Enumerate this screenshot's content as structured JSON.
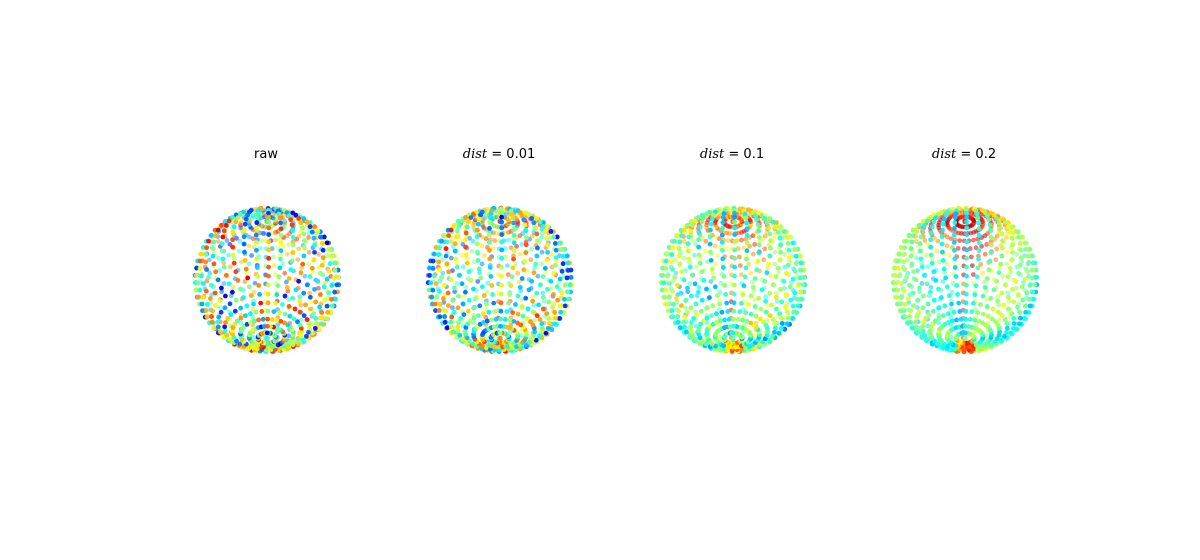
{
  "chart_data": {
    "type": "scatter",
    "subtype": "3d-scatter-sphere",
    "colormap": "jet",
    "axes_visible": false,
    "grid": false,
    "legend": "none",
    "panels": [
      {
        "title": "raw",
        "title_math": false,
        "dist": null
      },
      {
        "title": "dist = 0.01",
        "title_math": true,
        "var": "dist",
        "value": "0.01"
      },
      {
        "title": "dist = 0.1",
        "title_math": true,
        "var": "dist",
        "value": "0.1"
      },
      {
        "title": "dist = 0.2",
        "title_math": true,
        "var": "dist",
        "value": "0.2"
      }
    ]
  }
}
